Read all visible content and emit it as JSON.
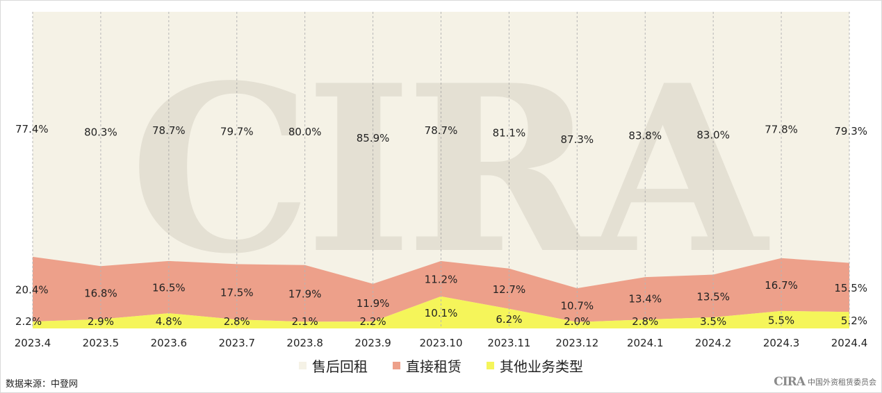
{
  "chart_data": {
    "type": "area",
    "stacked": true,
    "normalized": true,
    "categories": [
      "2023.4",
      "2023.5",
      "2023.6",
      "2023.7",
      "2023.8",
      "2023.9",
      "2023.10",
      "2023.11",
      "2023.12",
      "2024.1",
      "2024.2",
      "2024.3",
      "2024.4"
    ],
    "series": [
      {
        "name": "其他业务类型",
        "color": "#f5f55a",
        "values": [
          2.2,
          2.9,
          4.8,
          2.8,
          2.1,
          2.2,
          10.1,
          6.2,
          2.0,
          2.8,
          3.5,
          5.5,
          5.2
        ],
        "labels": [
          "2.2%",
          "2.9%",
          "4.8%",
          "2.8%",
          "2.1%",
          "2.2%",
          "10.1%",
          "6.2%",
          "2.0%",
          "2.8%",
          "3.5%",
          "5.5%",
          "5.2%"
        ]
      },
      {
        "name": "直接租赁",
        "color": "#eda08a",
        "values": [
          20.4,
          16.8,
          16.5,
          17.5,
          17.9,
          11.9,
          11.2,
          12.7,
          10.7,
          13.4,
          13.5,
          16.7,
          15.5
        ],
        "labels": [
          "20.4%",
          "16.8%",
          "16.5%",
          "17.5%",
          "17.9%",
          "11.9%",
          "11.2%",
          "12.7%",
          "10.7%",
          "13.4%",
          "13.5%",
          "16.7%",
          "15.5%"
        ]
      },
      {
        "name": "售后回租",
        "color": "#f5f2e6",
        "values": [
          77.4,
          80.3,
          78.7,
          79.7,
          80.0,
          85.9,
          78.7,
          81.1,
          87.3,
          83.8,
          83.0,
          77.8,
          79.3
        ],
        "labels": [
          "77.4%",
          "80.3%",
          "78.7%",
          "79.7%",
          "80.0%",
          "85.9%",
          "78.7%",
          "81.1%",
          "87.3%",
          "83.8%",
          "83.0%",
          "77.8%",
          "79.3%"
        ]
      }
    ],
    "legend": {
      "position": "bottom",
      "order": [
        "售后回租",
        "直接租赁",
        "其他业务类型"
      ]
    },
    "grid": {
      "vertical": true,
      "style": "dashed"
    }
  },
  "watermark": {
    "text": "CIRA"
  },
  "footer": {
    "source": "数据来源：中登网",
    "logo_mark": "CIRA",
    "logo_text": "中国外资租赁委员会"
  }
}
